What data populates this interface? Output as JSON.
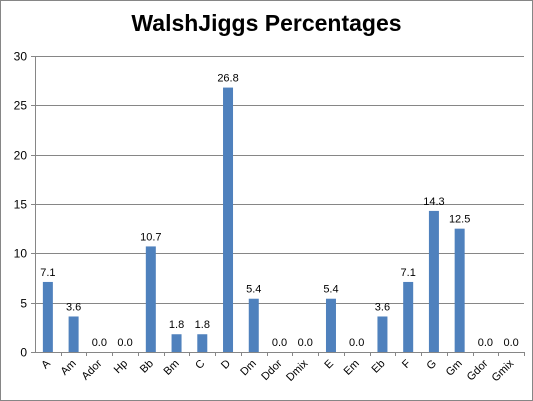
{
  "chart_data": {
    "type": "bar",
    "title": "WalshJiggs Percentages",
    "categories": [
      "A",
      "Am",
      "Ador",
      "Hp",
      "Bb",
      "Bm",
      "C",
      "D",
      "Dm",
      "Ddor",
      "Dmix",
      "E",
      "Em",
      "Eb",
      "F",
      "G",
      "Gm",
      "Gdor",
      "Gmix"
    ],
    "values": [
      7.1,
      3.6,
      0.0,
      0.0,
      10.7,
      1.8,
      1.8,
      26.8,
      5.4,
      0.0,
      0.0,
      5.4,
      0.0,
      3.6,
      7.1,
      14.3,
      12.5,
      0.0,
      0.0
    ],
    "data_labels": [
      "7.1",
      "3.6",
      "0.0",
      "0.0",
      "10.7",
      "1.8",
      "1.8",
      "26.8",
      "5.4",
      "0.0",
      "0.0",
      "5.4",
      "0.0",
      "3.6",
      "7.1",
      "14.3",
      "12.5",
      "0.0",
      "0.0"
    ],
    "yticks": [
      "0",
      "5",
      "10",
      "15",
      "20",
      "25",
      "30"
    ],
    "ylim": [
      0,
      30
    ],
    "xlabel": "",
    "ylabel": "",
    "grid": true,
    "legend": "none",
    "colors": {
      "bar": "#4f81bd",
      "grid": "#868686",
      "border": "#868686",
      "text": "#000000"
    }
  }
}
